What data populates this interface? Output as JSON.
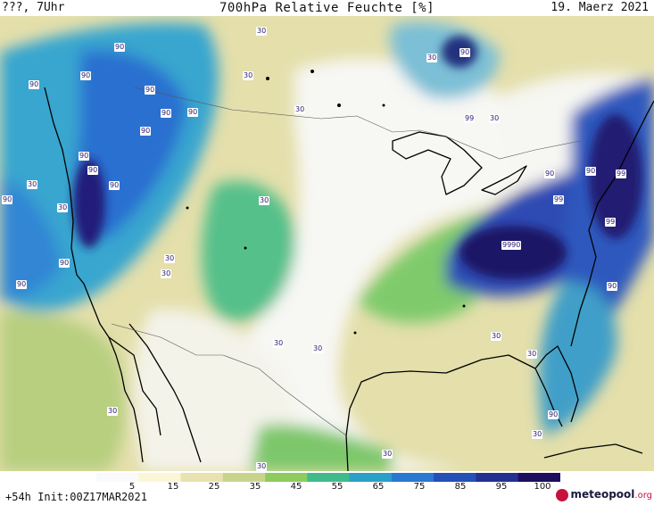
{
  "header": {
    "left": "???, 7Uhr",
    "title": "700hPa Relative Feuchte [%]",
    "date": "19. Maerz 2021"
  },
  "colorbar": {
    "ticks": [
      "5",
      "15",
      "25",
      "35",
      "45",
      "55",
      "65",
      "75",
      "85",
      "95",
      "100"
    ],
    "colors": [
      "#fafafa",
      "#fbf6d6",
      "#e8e2b0",
      "#c8d48c",
      "#8ecb5e",
      "#3fba8a",
      "#28a0c8",
      "#2a78d2",
      "#2450b8",
      "#26308e",
      "#1c0f5e"
    ]
  },
  "footer": {
    "init": "+54h Init:00Z17MAR2021",
    "brand_a": "meteopool",
    "brand_b": ".org"
  },
  "contour_labels": [
    "90",
    "90",
    "90",
    "90",
    "90",
    "90",
    "90",
    "90",
    "90",
    "90",
    "90",
    "90",
    "90",
    "90",
    "90",
    "90",
    "90",
    "90",
    "99",
    "99",
    "99",
    "99",
    "9990",
    "30",
    "30",
    "30",
    "30",
    "30",
    "30",
    "30",
    "30",
    "30",
    "30",
    "30",
    "30",
    "30",
    "30",
    "30",
    "30",
    "30",
    "30"
  ]
}
